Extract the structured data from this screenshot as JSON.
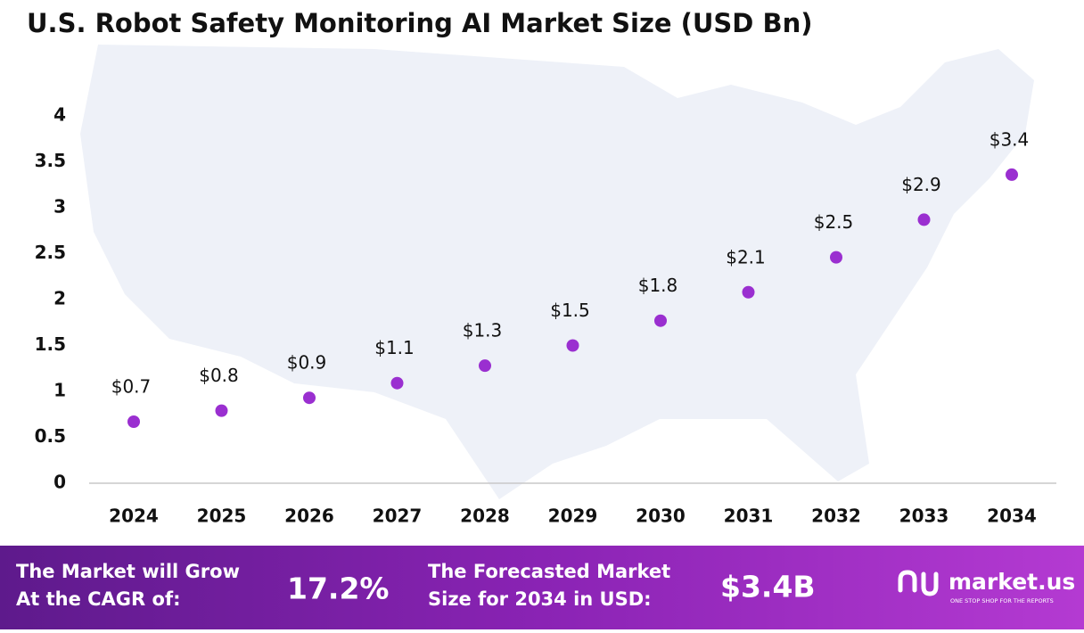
{
  "chart_data": {
    "type": "line",
    "title": "U.S. Robot Safety Monitoring AI Market Size (USD Bn)",
    "categories": [
      "2024",
      "2025",
      "2026",
      "2027",
      "2028",
      "2029",
      "2030",
      "2031",
      "2032",
      "2033",
      "2034"
    ],
    "series": [
      {
        "name": "Market Size",
        "color": "#9a2fd0",
        "values": [
          0.67,
          0.79,
          0.93,
          1.09,
          1.28,
          1.5,
          1.77,
          2.08,
          2.46,
          2.87,
          3.36
        ],
        "value_labels": [
          "$0.7",
          "$0.8",
          "$0.9",
          "$1.1",
          "$1.3",
          "$1.5",
          "$1.8",
          "$2.1",
          "$2.5",
          "$2.9",
          "$3.4"
        ]
      }
    ],
    "ylim": [
      0,
      4
    ],
    "yticks": [
      0,
      0.5,
      1,
      1.5,
      2,
      2.5,
      3,
      3.5,
      4
    ],
    "grid": false
  },
  "footer": {
    "cagr_label": [
      "The Market will Grow",
      "At the CAGR of:"
    ],
    "cagr_value": "17.2%",
    "forecast_label": [
      "The Forecasted Market",
      "Size for 2034 in USD:"
    ],
    "forecast_value": "$3.4B",
    "brand": "market.us",
    "tagline": "ONE STOP SHOP FOR THE REPORTS"
  }
}
